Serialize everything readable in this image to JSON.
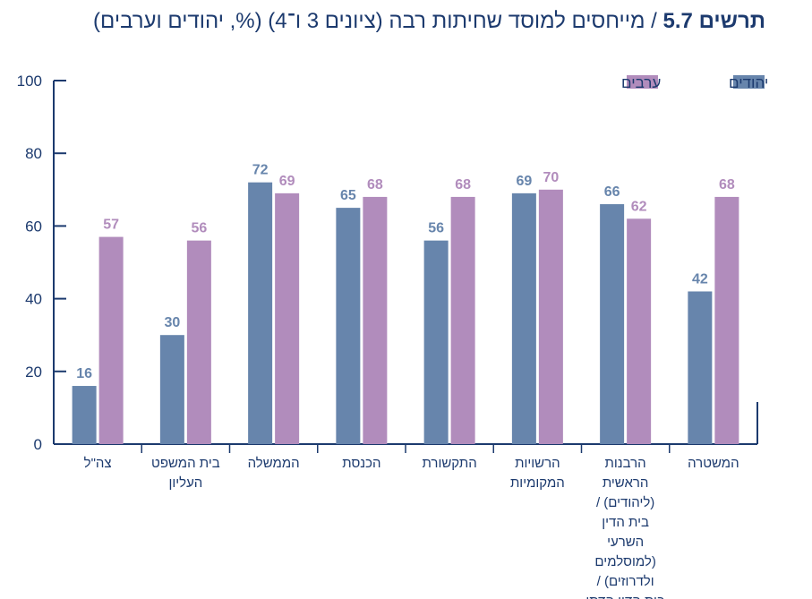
{
  "title": {
    "prefix": "תרשים 5.7",
    "separator": " / ",
    "text": "מייחסים למוסד שחיתות רבה (ציונים 3 ו־4) (%, יהודים וערבים)"
  },
  "colors": {
    "jews": "#6785ac",
    "arabs": "#b18cbc",
    "axis": "#1c3a6e"
  },
  "chart_data": {
    "type": "bar",
    "ylim": [
      0,
      100
    ],
    "yticks": [
      0,
      20,
      40,
      60,
      80,
      100
    ],
    "legend_position": "top-right",
    "categories": [
      {
        "label": [
          "צה\"ל"
        ]
      },
      {
        "label": [
          "בית המשפט",
          "העליון"
        ]
      },
      {
        "label": [
          "הממשלה"
        ]
      },
      {
        "label": [
          "הכנסת"
        ]
      },
      {
        "label": [
          "התקשורת"
        ]
      },
      {
        "label": [
          "הרשויות",
          "המקומיות"
        ]
      },
      {
        "label": [
          "הרבנות",
          "הראשית",
          "(ליהודים) /",
          "בית הדין",
          "השרעי",
          "(למוסלמים",
          "ולדרוזים) /",
          "בית הדין הדתי"
        ]
      },
      {
        "label": [
          "המשטרה"
        ]
      }
    ],
    "series": [
      {
        "name": "יהודים",
        "color_key": "jews",
        "values": [
          16,
          30,
          72,
          65,
          56,
          69,
          66,
          42
        ]
      },
      {
        "name": "ערבים",
        "color_key": "arabs",
        "values": [
          57,
          56,
          69,
          68,
          68,
          70,
          62,
          68
        ]
      }
    ]
  }
}
